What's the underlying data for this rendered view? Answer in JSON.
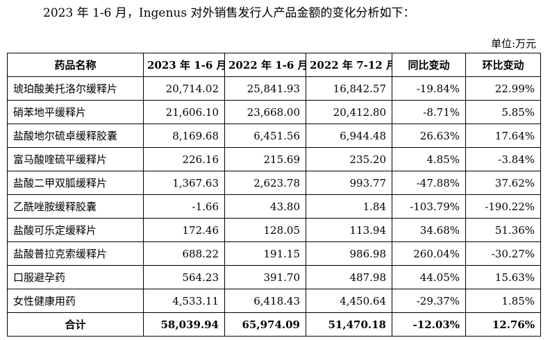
{
  "intro": "2023 年 1-6 月，Ingenus 对外销售发行人产品金额的变化分析如下：",
  "unit": "单位:万元",
  "table": {
    "headers": [
      "药品名称",
      "2023 年 1-6 月",
      "2022 年 1-6 月",
      "2022 年 7-12 月",
      "同比变动",
      "环比变动"
    ],
    "rows": [
      [
        "琥珀酸美托洛尔缓释片",
        "20,714.02",
        "25,841.93",
        "16,842.57",
        "-19.84%",
        "22.99%"
      ],
      [
        "硝苯地平缓释片",
        "21,606.10",
        "23,668.00",
        "20,412.80",
        "-8.71%",
        "5.85%"
      ],
      [
        "盐酸地尔硫卓缓释胶囊",
        "8,169.68",
        "6,451.56",
        "6,944.48",
        "26.63%",
        "17.64%"
      ],
      [
        "富马酸喹硫平缓释片",
        "226.16",
        "215.69",
        "235.20",
        "4.85%",
        "-3.84%"
      ],
      [
        "盐酸二甲双胍缓释片",
        "1,367.63",
        "2,623.78",
        "993.77",
        "-47.88%",
        "37.62%"
      ],
      [
        "乙酰唑胺缓释胶囊",
        "-1.66",
        "43.80",
        "1.84",
        "-103.79%",
        "-190.22%"
      ],
      [
        "盐酸可乐定缓释片",
        "172.46",
        "128.05",
        "113.94",
        "34.68%",
        "51.36%"
      ],
      [
        "盐酸普拉克索缓释片",
        "688.22",
        "191.15",
        "986.98",
        "260.04%",
        "-30.27%"
      ],
      [
        "口服避孕药",
        "564.23",
        "391.70",
        "487.98",
        "44.05%",
        "15.63%"
      ],
      [
        "女性健康用药",
        "4,533.11",
        "6,418.43",
        "4,450.64",
        "-29.37%",
        "1.85%"
      ]
    ],
    "total": [
      "合计",
      "58,039.94",
      "65,974.09",
      "51,470.18",
      "-12.03%",
      "12.76%"
    ]
  }
}
